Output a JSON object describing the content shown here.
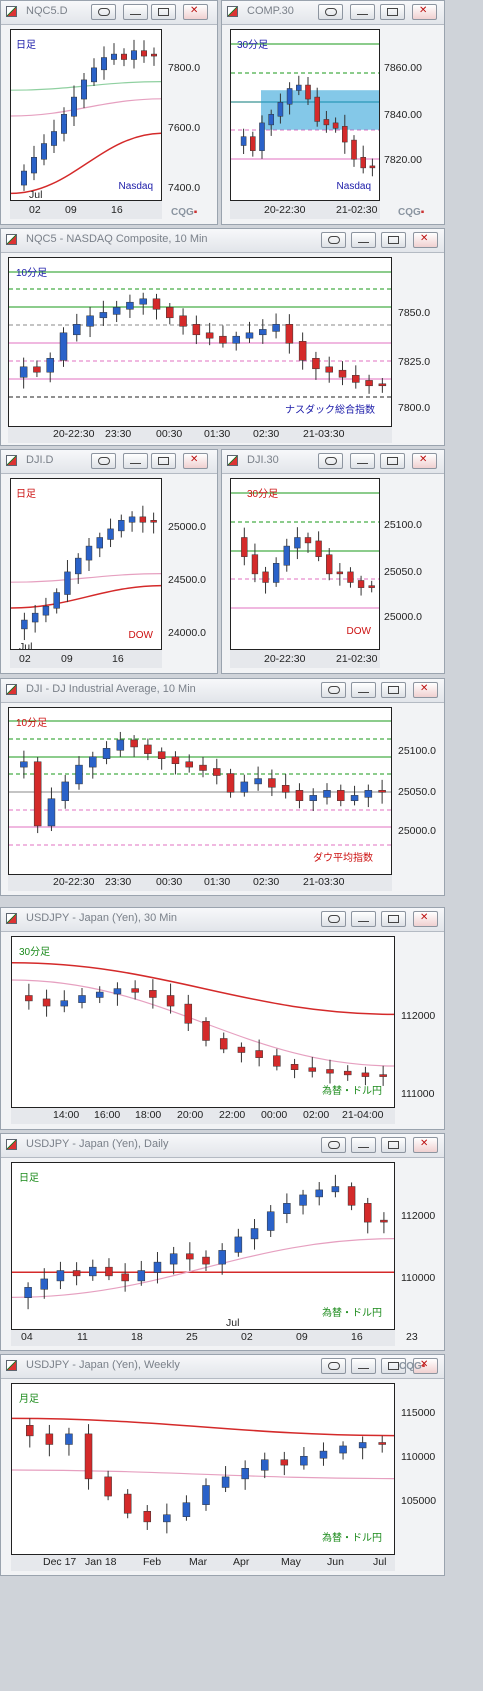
{
  "windows": [
    {
      "title": "NQC5.D",
      "tag": "日足",
      "tag_color": "#1a1aa8",
      "label": "Nasdaq",
      "label_color": "#1a1aa8",
      "yticks": [
        "7800.0",
        "7600.0",
        "7400.0"
      ],
      "xticks": [
        "02",
        "09",
        "16"
      ],
      "xsub": "Jul",
      "logo": "CQG"
    },
    {
      "title": "COMP.30",
      "tag": "30分足",
      "tag_color": "#1a1aa8",
      "label": "Nasdaq",
      "label_color": "#1a1aa8",
      "yticks": [
        "7860.00",
        "7840.00",
        "7820.00"
      ],
      "xticks": [
        "20-22:30",
        "21-02:30"
      ],
      "logo": "CQG"
    },
    {
      "title": "NQC5 - NASDAQ Composite, 10 Min",
      "tag": "10分足",
      "tag_color": "#1a1aa8",
      "label": "ナスダック総合指数",
      "label_color": "#1a1aa8",
      "yticks": [
        "7850.0",
        "7825.0",
        "7800.0"
      ],
      "xticks": [
        "20-22:30",
        "23:30",
        "00:30",
        "01:30",
        "02:30",
        "21-03:30"
      ]
    },
    {
      "title": "DJI.D",
      "tag": "日足",
      "tag_color": "#cc1111",
      "label": "DOW",
      "label_color": "#cc1111",
      "yticks": [
        "25000.0",
        "24500.0",
        "24000.0"
      ],
      "xticks": [
        "02",
        "09",
        "16"
      ],
      "xsub": "Jul"
    },
    {
      "title": "DJI.30",
      "tag": "30分足",
      "tag_color": "#cc1111",
      "label": "DOW",
      "label_color": "#cc1111",
      "yticks": [
        "25100.0",
        "25050.0",
        "25000.0"
      ],
      "xticks": [
        "20-22:30",
        "21-02:30"
      ]
    },
    {
      "title": "DJI - DJ Industrial Average, 10 Min",
      "tag": "10分足",
      "tag_color": "#cc1111",
      "label": "ダウ平均指数",
      "label_color": "#cc1111",
      "yticks": [
        "25100.0",
        "25050.0",
        "25000.0"
      ],
      "xticks": [
        "20-22:30",
        "23:30",
        "00:30",
        "01:30",
        "02:30",
        "21-03:30"
      ]
    },
    {
      "title": "USDJPY - Japan (Yen), 30 Min",
      "tag": "30分足",
      "tag_color": "#1a8a1a",
      "label": "為替・ドル円",
      "label_color": "#1a8a1a",
      "yticks": [
        "112000",
        "111000"
      ],
      "xticks": [
        "14:00",
        "16:00",
        "18:00",
        "20:00",
        "22:00",
        "00:00",
        "02:00",
        "21-04:00"
      ]
    },
    {
      "title": "USDJPY - Japan (Yen), Daily",
      "tag": "日足",
      "tag_color": "#1a8a1a",
      "label": "為替・ドル円",
      "label_color": "#1a8a1a",
      "yticks": [
        "112000",
        "110000"
      ],
      "xticks": [
        "04",
        "11",
        "18",
        "25",
        "02",
        "09",
        "16",
        "23"
      ],
      "xsub": "Jul"
    },
    {
      "title": "USDJPY - Japan (Yen), Weekly",
      "tag": "月足",
      "tag_color": "#1a8a1a",
      "label": "為替・ドル円",
      "label_color": "#1a8a1a",
      "yticks": [
        "115000",
        "110000",
        "105000"
      ],
      "xticks": [
        "Dec 17",
        "Jan 18",
        "Feb",
        "Mar",
        "Apr",
        "May",
        "Jun",
        "Jul"
      ],
      "logo": "CQG"
    }
  ],
  "colors": {
    "up": "#2a62c9",
    "down": "#d42a2a",
    "accent": "#1f9bd6"
  }
}
